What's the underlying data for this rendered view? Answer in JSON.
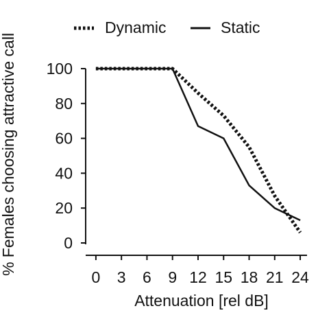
{
  "chart_data": {
    "type": "line",
    "title": "",
    "xlabel": "Attenuation [rel dB]",
    "ylabel": "% Females choosing attractive call",
    "x_ticks": [
      "0",
      "3",
      "6",
      "9",
      "12",
      "15",
      "18",
      "21",
      "24"
    ],
    "y_ticks": [
      "0",
      "20",
      "40",
      "60",
      "80",
      "100"
    ],
    "xlim": [
      -1.2,
      24.8
    ],
    "ylim": [
      0,
      100
    ],
    "grid": false,
    "legend_position": "top",
    "series": [
      {
        "name": "Dynamic",
        "style": "dotted",
        "color": "#111111",
        "x": [
          0,
          3,
          6,
          9,
          12,
          15,
          18,
          21,
          24
        ],
        "y": [
          100,
          100,
          100,
          100,
          86,
          73,
          55,
          27,
          6
        ]
      },
      {
        "name": "Static",
        "style": "solid",
        "color": "#111111",
        "x": [
          0,
          3,
          6,
          9,
          12,
          15,
          18,
          21,
          24
        ],
        "y": [
          100,
          100,
          100,
          100,
          67,
          60,
          33,
          20,
          13
        ]
      }
    ]
  }
}
